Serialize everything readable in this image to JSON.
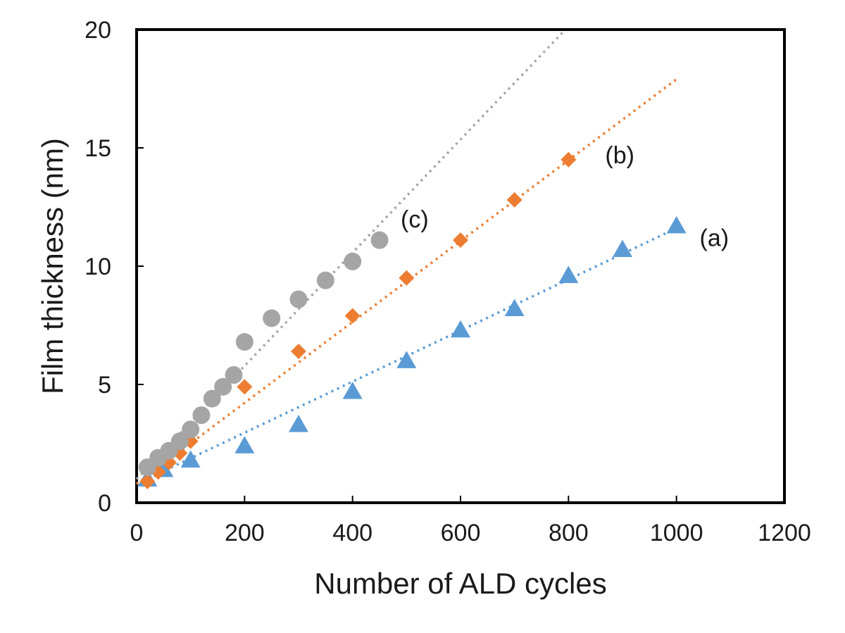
{
  "chart_data": {
    "type": "scatter",
    "title": "",
    "xlabel": "Number of ALD cycles",
    "ylabel": "Film thickness (nm)",
    "xlim": [
      0,
      1200
    ],
    "ylim": [
      0,
      20
    ],
    "xticks": [
      0,
      200,
      400,
      600,
      800,
      1000,
      1200
    ],
    "yticks": [
      0,
      5,
      10,
      15,
      20
    ],
    "grid": false,
    "legend": "none",
    "series": [
      {
        "label": "(a)",
        "marker": "triangle",
        "color": "#5b9bd5",
        "x": [
          20,
          50,
          100,
          200,
          300,
          400,
          500,
          600,
          700,
          800,
          900,
          1000
        ],
        "y": [
          1.0,
          1.4,
          1.8,
          2.4,
          3.3,
          4.7,
          6.0,
          7.3,
          8.2,
          9.6,
          10.7,
          11.7
        ],
        "trend": {
          "type": "linear",
          "x": [
            0,
            1000
          ],
          "y": [
            0.8,
            11.6
          ]
        }
      },
      {
        "label": "(b)",
        "marker": "diamond",
        "color": "#ed7d31",
        "x": [
          20,
          40,
          60,
          80,
          100,
          200,
          300,
          400,
          500,
          600,
          700,
          800
        ],
        "y": [
          0.9,
          1.3,
          1.7,
          2.1,
          2.6,
          4.9,
          6.4,
          7.9,
          9.5,
          11.1,
          12.8,
          14.5
        ],
        "trend": {
          "type": "linear",
          "x": [
            0,
            1000
          ],
          "y": [
            0.8,
            17.9
          ]
        }
      },
      {
        "label": "(c)",
        "marker": "circle",
        "color": "#a5a5a5",
        "x": [
          20,
          40,
          60,
          80,
          100,
          120,
          140,
          160,
          180,
          200,
          250,
          300,
          350,
          400,
          450
        ],
        "y": [
          1.5,
          1.9,
          2.2,
          2.6,
          3.1,
          3.7,
          4.4,
          4.9,
          5.4,
          6.8,
          7.8,
          8.6,
          9.4,
          10.2,
          11.1
        ],
        "trend": {
          "type": "linear",
          "x": [
            0,
            790
          ],
          "y": [
            1.0,
            19.9
          ]
        }
      }
    ],
    "annotations": [
      {
        "text": "(a)",
        "x": 1070,
        "y": 11.2
      },
      {
        "text": "(b)",
        "x": 895,
        "y": 14.7
      },
      {
        "text": "(c)",
        "x": 515,
        "y": 12.0
      }
    ]
  }
}
